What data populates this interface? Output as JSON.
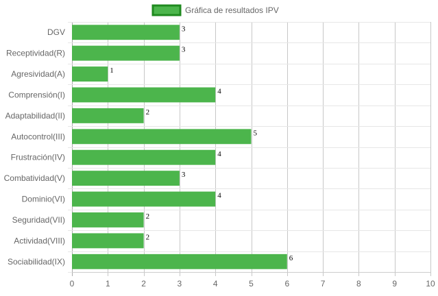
{
  "chart_data": {
    "type": "bar",
    "orientation": "horizontal",
    "categories": [
      "DGV",
      "Receptividad(R)",
      "Agresividad(A)",
      "Comprensión(I)",
      "Adaptabilidad(II)",
      "Autocontrol(III)",
      "Frustración(IV)",
      "Combatividad(V)",
      "Dominio(VI)",
      "Seguridad(VII)",
      "Actividad(VIII)",
      "Sociabilidad(IX)"
    ],
    "series": [
      {
        "name": "Gráfica de resultados IPV",
        "values": [
          3,
          3,
          1,
          4,
          2,
          5,
          4,
          3,
          4,
          2,
          2,
          6
        ],
        "color": "#4cb54c",
        "border_color": "#1f8a1f"
      }
    ],
    "xlim": [
      0,
      10
    ],
    "x_ticks": [
      0,
      1,
      2,
      3,
      4,
      5,
      6,
      7,
      8,
      9,
      10
    ],
    "data_labels": true,
    "legend_position": "top",
    "grid": true,
    "title": "",
    "xlabel": "",
    "ylabel": ""
  }
}
